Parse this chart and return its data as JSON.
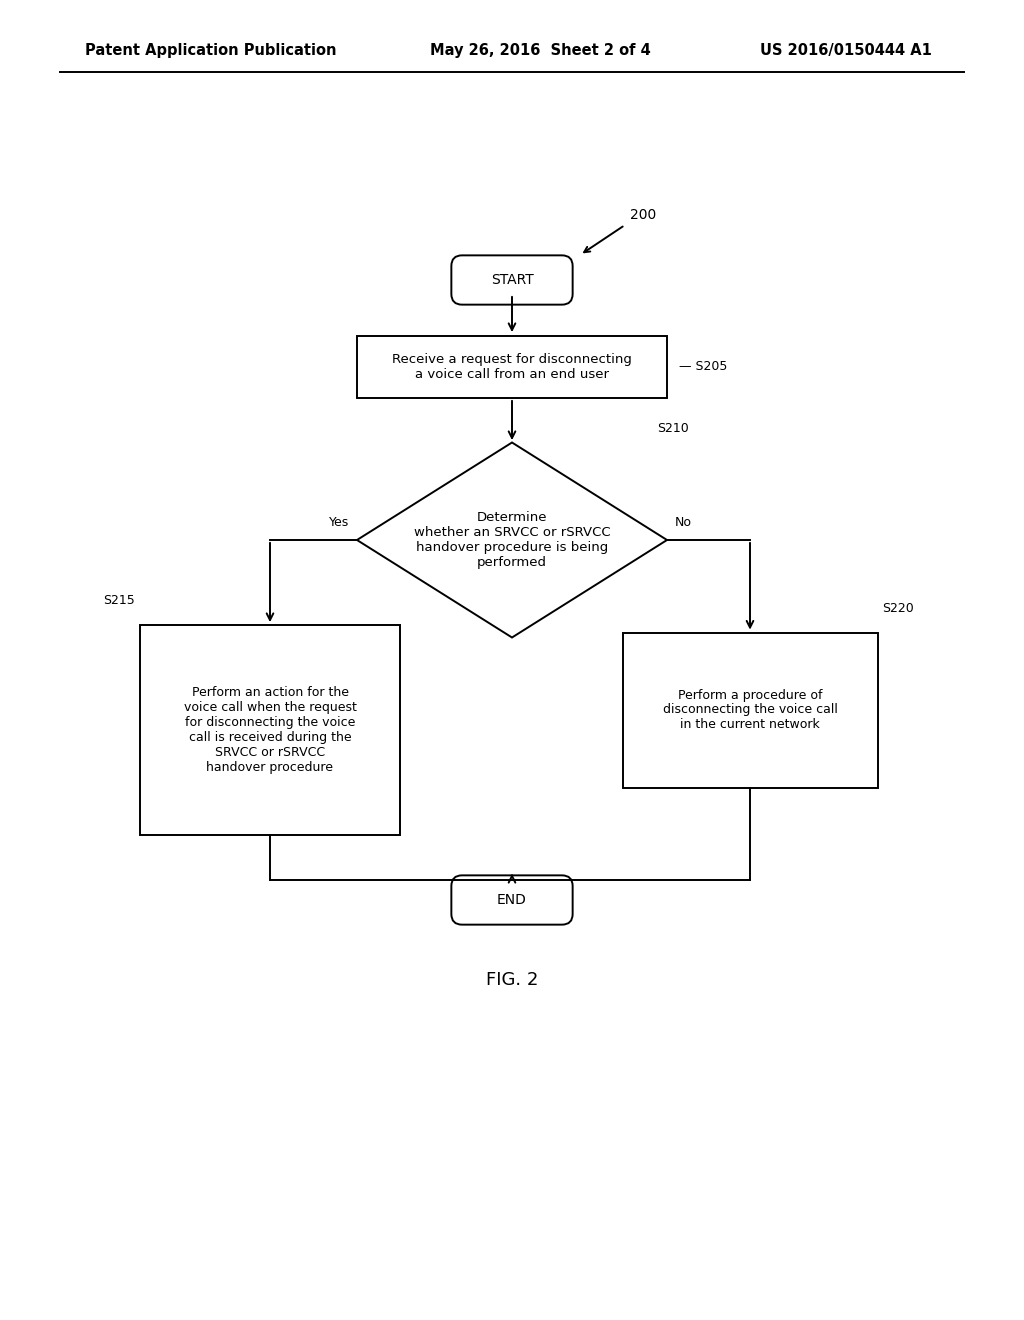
{
  "bg_color": "#ffffff",
  "header_left": "Patent Application Publication",
  "header_mid": "May 26, 2016  Sheet 2 of 4",
  "header_right": "US 2016/0150444 A1",
  "fig_label": "FIG. 2",
  "diagram_ref": "200",
  "start_label": "START",
  "end_label": "END",
  "box1_text": "Receive a request for disconnecting\na voice call from an end user",
  "box1_label": "S205",
  "diamond_text": "Determine\nwhether an SRVCC or rSRVCC\nhandover procedure is being\nperformed",
  "diamond_label": "S210",
  "yes_label": "Yes",
  "no_label": "No",
  "box2_text": "Perform an action for the\nvoice call when the request\nfor disconnecting the voice\ncall is received during the\nSRVCC or rSRVCC\nhandover procedure",
  "box2_label": "S215",
  "box3_text": "Perform a procedure of\ndisconnecting the voice call\nin the current network",
  "box3_label": "S220",
  "line_color": "#000000",
  "text_color": "#000000",
  "font_size_header": 10.5,
  "font_size_body": 9.5,
  "font_size_label": 9.0,
  "font_size_caption": 13.0,
  "lw": 1.4
}
